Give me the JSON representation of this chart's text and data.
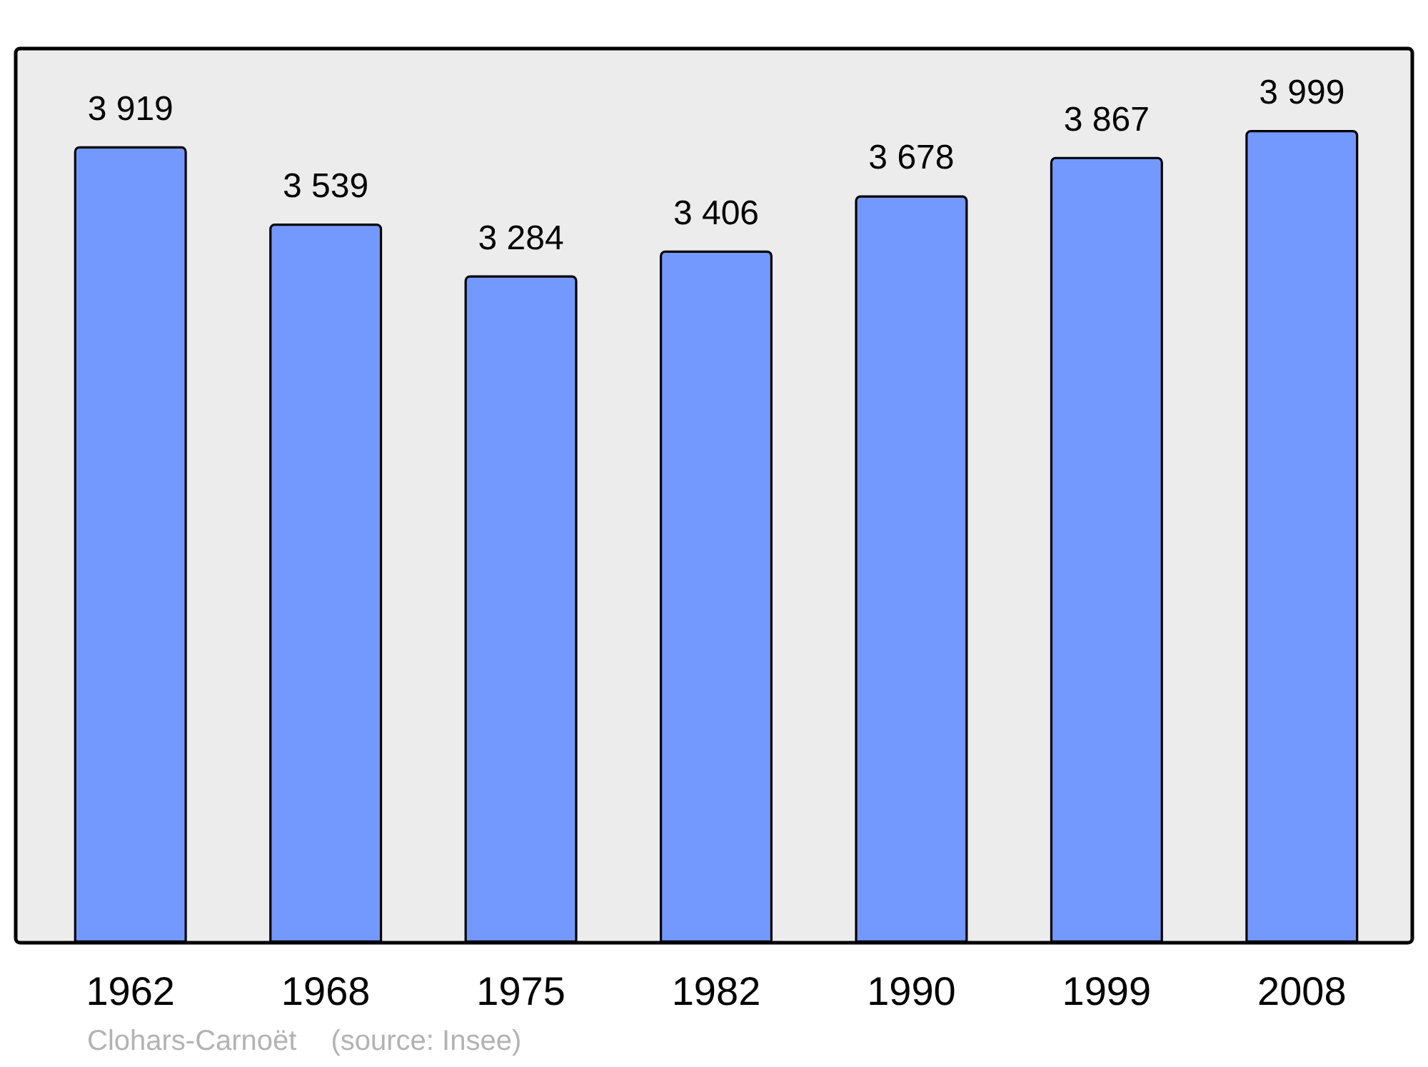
{
  "chart_data": {
    "type": "bar",
    "categories": [
      "1962",
      "1968",
      "1975",
      "1982",
      "1990",
      "1999",
      "2008"
    ],
    "values": [
      3919,
      3539,
      3284,
      3406,
      3678,
      3867,
      3999
    ],
    "value_labels": [
      "3 919",
      "3 539",
      "3 284",
      "3 406",
      "3 678",
      "3 867",
      "3 999"
    ],
    "color": "#7399ff",
    "ylim": [
      0,
      4400
    ],
    "tick_labels": "x",
    "annotations": [
      "Clohars-Carnoët",
      "(source: Insee)"
    ]
  }
}
